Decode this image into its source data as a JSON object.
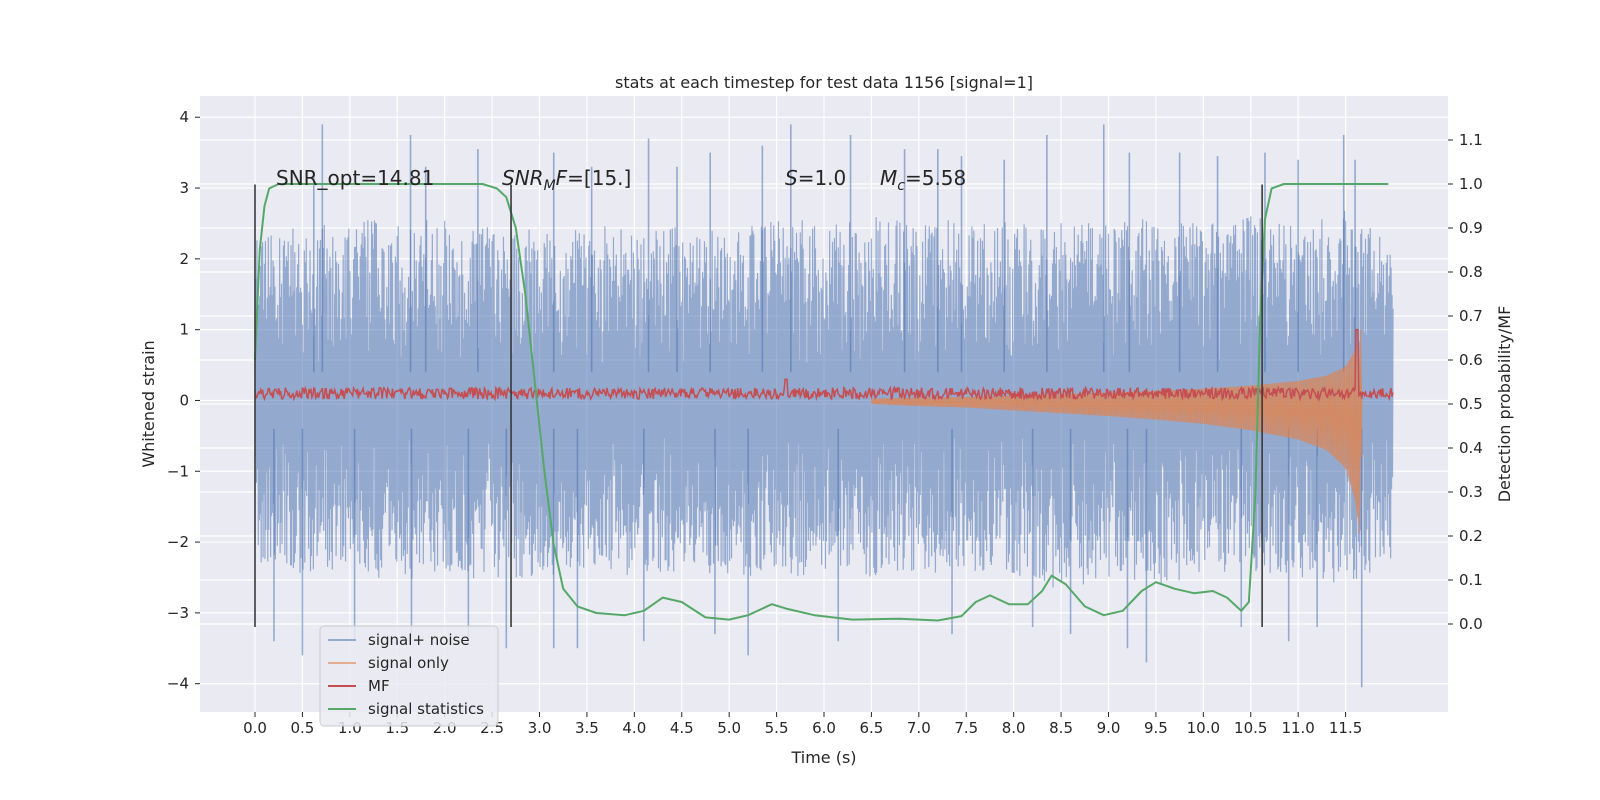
{
  "chart_data": {
    "type": "line",
    "title": "stats at each timestep for test data 1156 [signal=1]",
    "xlabel": "Time (s)",
    "ylabel": "Whitened strain",
    "ylabel_right": "Detection probability/MF",
    "xlim": [
      -0.58,
      12.58
    ],
    "ylim": [
      -4.4,
      4.3
    ],
    "ylim_right": [
      -0.2,
      1.2
    ],
    "x_ticks": [
      "0.0",
      "0.5",
      "1.0",
      "1.5",
      "2.0",
      "2.5",
      "3.0",
      "3.5",
      "4.0",
      "4.5",
      "5.0",
      "5.5",
      "6.0",
      "6.5",
      "7.0",
      "7.5",
      "8.0",
      "8.5",
      "9.0",
      "9.5",
      "10.0",
      "10.5",
      "11.0",
      "11.5"
    ],
    "y_ticks": [
      "4",
      "3",
      "2",
      "1",
      "0",
      "−1",
      "−2",
      "−3",
      "−4"
    ],
    "y_ticks_right": [
      "1.1",
      "1.0",
      "0.9",
      "0.8",
      "0.7",
      "0.6",
      "0.5",
      "0.4",
      "0.3",
      "0.2",
      "0.1",
      "0.0"
    ],
    "grid": true,
    "legend_position": "lower-left",
    "annotations": [
      {
        "id": "snr-opt",
        "x": 0.2,
        "text": "SNR_opt=14.81"
      },
      {
        "id": "snr-mf",
        "x": 2.6,
        "text": "SNRMF=[15.]"
      },
      {
        "id": "s-value",
        "x": 5.6,
        "text": "S=1.0"
      },
      {
        "id": "mc-value",
        "x": 6.6,
        "text": "Mc=5.58"
      }
    ],
    "vertical_lines": [
      {
        "x": 0.0,
        "y_range": [
          -3.2,
          3.05
        ]
      },
      {
        "x": 2.7,
        "y_range": [
          -3.2,
          3.05
        ]
      },
      {
        "x": 10.62,
        "y_range": [
          -3.2,
          3.05
        ]
      }
    ],
    "series": [
      {
        "name": "signal+ noise",
        "color": "#4c72b0",
        "axis": "left",
        "x_range": [
          0.0,
          12.0
        ],
        "envelope_upper": [
          [
            0.0,
            2.4
          ],
          [
            0.5,
            2.5
          ],
          [
            1.0,
            2.6
          ],
          [
            1.5,
            2.5
          ],
          [
            2.0,
            2.6
          ],
          [
            2.5,
            2.5
          ],
          [
            3.0,
            2.4
          ],
          [
            3.5,
            2.5
          ],
          [
            4.0,
            2.4
          ],
          [
            4.5,
            2.5
          ],
          [
            5.0,
            2.4
          ],
          [
            5.5,
            2.6
          ],
          [
            6.0,
            2.5
          ],
          [
            6.5,
            2.6
          ],
          [
            7.0,
            2.5
          ],
          [
            7.5,
            2.6
          ],
          [
            8.0,
            2.5
          ],
          [
            8.5,
            2.6
          ],
          [
            9.0,
            2.5
          ],
          [
            9.5,
            2.6
          ],
          [
            10.0,
            2.5
          ],
          [
            10.5,
            2.6
          ],
          [
            11.0,
            2.5
          ],
          [
            11.5,
            2.7
          ],
          [
            12.0,
            2.4
          ]
        ],
        "envelope_lower": [
          [
            0.0,
            -2.3
          ],
          [
            0.5,
            -2.5
          ],
          [
            1.0,
            -2.4
          ],
          [
            1.5,
            -2.6
          ],
          [
            2.0,
            -2.4
          ],
          [
            2.5,
            -2.6
          ],
          [
            3.0,
            -2.5
          ],
          [
            3.5,
            -2.4
          ],
          [
            4.0,
            -2.5
          ],
          [
            4.5,
            -2.4
          ],
          [
            5.0,
            -2.5
          ],
          [
            5.5,
            -2.6
          ],
          [
            6.0,
            -2.4
          ],
          [
            6.5,
            -2.5
          ],
          [
            7.0,
            -2.4
          ],
          [
            7.5,
            -2.5
          ],
          [
            8.0,
            -2.5
          ],
          [
            8.5,
            -2.7
          ],
          [
            9.0,
            -2.5
          ],
          [
            9.5,
            -2.6
          ],
          [
            10.0,
            -2.5
          ],
          [
            10.5,
            -2.4
          ],
          [
            11.0,
            -2.5
          ],
          [
            11.5,
            -2.6
          ],
          [
            12.0,
            -2.3
          ]
        ],
        "peaks": [
          [
            0.71,
            3.9
          ],
          [
            0.62,
            3.2
          ],
          [
            1.64,
            3.75
          ],
          [
            1.8,
            3.3
          ],
          [
            2.35,
            3.55
          ],
          [
            3.15,
            3.5
          ],
          [
            3.55,
            3.3
          ],
          [
            4.15,
            3.7
          ],
          [
            4.45,
            3.3
          ],
          [
            4.8,
            3.5
          ],
          [
            5.35,
            3.6
          ],
          [
            5.65,
            3.9
          ],
          [
            6.28,
            3.75
          ],
          [
            6.85,
            3.55
          ],
          [
            7.2,
            3.55
          ],
          [
            7.45,
            3.45
          ],
          [
            7.9,
            3.4
          ],
          [
            8.35,
            3.75
          ],
          [
            8.95,
            3.9
          ],
          [
            9.22,
            3.5
          ],
          [
            9.75,
            3.5
          ],
          [
            10.15,
            3.45
          ],
          [
            10.65,
            3.5
          ],
          [
            11.0,
            3.4
          ],
          [
            11.48,
            3.75
          ],
          [
            11.6,
            3.4
          ]
        ],
        "troughs": [
          [
            0.2,
            -3.4
          ],
          [
            0.5,
            -3.6
          ],
          [
            1.05,
            -3.4
          ],
          [
            1.65,
            -3.3
          ],
          [
            2.25,
            -3.4
          ],
          [
            2.65,
            -3.5
          ],
          [
            3.15,
            -3.5
          ],
          [
            3.4,
            -3.5
          ],
          [
            4.1,
            -3.4
          ],
          [
            4.85,
            -3.3
          ],
          [
            5.2,
            -3.6
          ],
          [
            6.15,
            -3.4
          ],
          [
            7.35,
            -3.3
          ],
          [
            8.2,
            -3.2
          ],
          [
            8.6,
            -3.3
          ],
          [
            9.2,
            -3.5
          ],
          [
            9.4,
            -3.7
          ],
          [
            10.4,
            -3.2
          ],
          [
            10.9,
            -3.4
          ],
          [
            11.2,
            -3.2
          ],
          [
            11.67,
            -4.05
          ]
        ]
      },
      {
        "name": "signal only",
        "color": "#dd8452",
        "axis": "left",
        "chirp_envelope": [
          [
            6.5,
            0.05
          ],
          [
            7.0,
            0.08
          ],
          [
            7.5,
            0.1
          ],
          [
            8.0,
            0.14
          ],
          [
            8.5,
            0.18
          ],
          [
            9.0,
            0.22
          ],
          [
            9.5,
            0.27
          ],
          [
            10.0,
            0.33
          ],
          [
            10.5,
            0.42
          ],
          [
            11.0,
            0.55
          ],
          [
            11.3,
            0.7
          ],
          [
            11.5,
            0.95
          ],
          [
            11.6,
            1.4
          ],
          [
            11.66,
            2.0
          ],
          [
            11.68,
            0.0
          ]
        ]
      },
      {
        "name": "MF",
        "color": "#c44e52",
        "axis": "left",
        "x_range": [
          0.0,
          12.0
        ],
        "base": 0.1,
        "noise_amplitude": 0.08,
        "spikes": [
          [
            5.6,
            0.3
          ],
          [
            11.62,
            1.0
          ]
        ]
      },
      {
        "name": "signal statistics",
        "color": "#55a868",
        "axis": "right",
        "points": [
          [
            0.0,
            0.6
          ],
          [
            0.05,
            0.85
          ],
          [
            0.1,
            0.95
          ],
          [
            0.15,
            0.99
          ],
          [
            0.25,
            1.0
          ],
          [
            2.4,
            1.0
          ],
          [
            2.55,
            0.99
          ],
          [
            2.65,
            0.97
          ],
          [
            2.75,
            0.9
          ],
          [
            2.85,
            0.75
          ],
          [
            2.95,
            0.55
          ],
          [
            3.05,
            0.35
          ],
          [
            3.15,
            0.18
          ],
          [
            3.25,
            0.08
          ],
          [
            3.4,
            0.04
          ],
          [
            3.6,
            0.025
          ],
          [
            3.9,
            0.02
          ],
          [
            4.1,
            0.03
          ],
          [
            4.3,
            0.06
          ],
          [
            4.5,
            0.05
          ],
          [
            4.75,
            0.015
          ],
          [
            5.0,
            0.01
          ],
          [
            5.2,
            0.02
          ],
          [
            5.45,
            0.045
          ],
          [
            5.6,
            0.035
          ],
          [
            5.9,
            0.02
          ],
          [
            6.3,
            0.01
          ],
          [
            6.8,
            0.012
          ],
          [
            7.2,
            0.008
          ],
          [
            7.45,
            0.018
          ],
          [
            7.6,
            0.05
          ],
          [
            7.75,
            0.065
          ],
          [
            7.95,
            0.045
          ],
          [
            8.15,
            0.045
          ],
          [
            8.3,
            0.075
          ],
          [
            8.4,
            0.11
          ],
          [
            8.55,
            0.09
          ],
          [
            8.75,
            0.04
          ],
          [
            8.95,
            0.02
          ],
          [
            9.15,
            0.03
          ],
          [
            9.35,
            0.075
          ],
          [
            9.5,
            0.095
          ],
          [
            9.7,
            0.08
          ],
          [
            9.9,
            0.07
          ],
          [
            10.1,
            0.075
          ],
          [
            10.25,
            0.06
          ],
          [
            10.4,
            0.03
          ],
          [
            10.48,
            0.05
          ],
          [
            10.55,
            0.3
          ],
          [
            10.6,
            0.7
          ],
          [
            10.65,
            0.92
          ],
          [
            10.72,
            0.99
          ],
          [
            10.85,
            1.0
          ],
          [
            11.95,
            1.0
          ]
        ]
      }
    ]
  }
}
